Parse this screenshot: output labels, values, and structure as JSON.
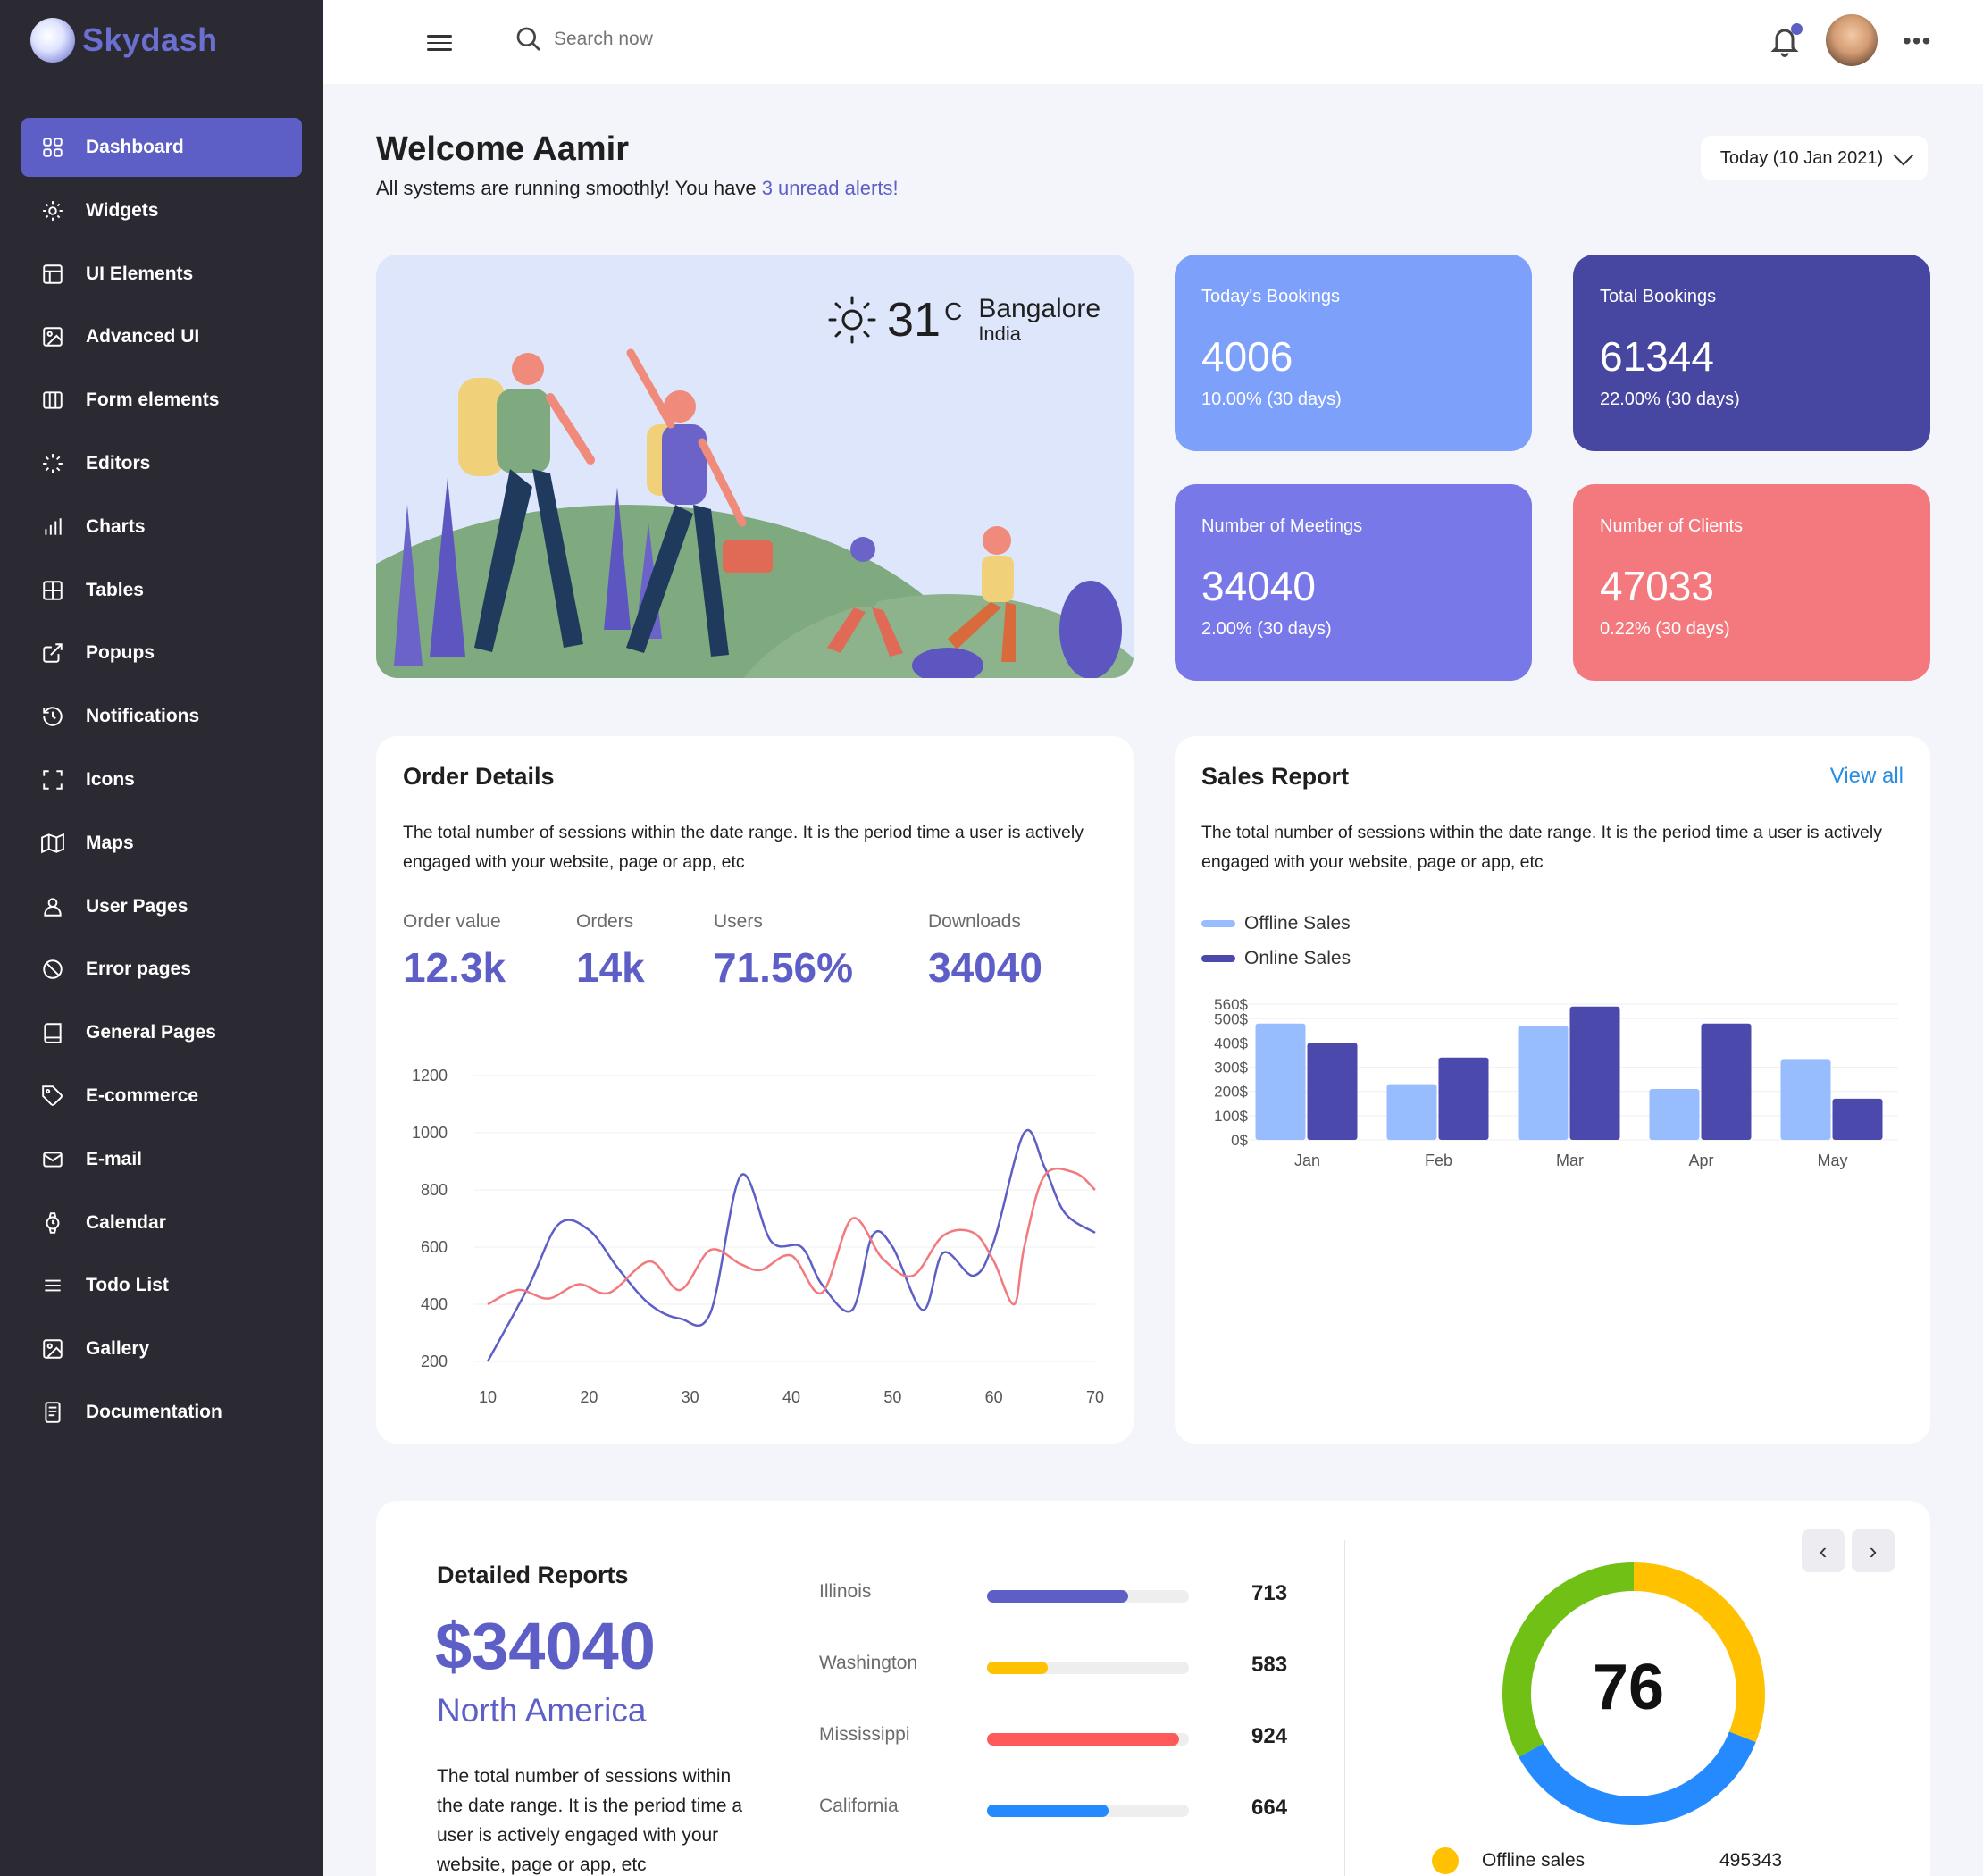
{
  "app": {
    "name": "Skydash"
  },
  "sidebar": {
    "items": [
      {
        "label": "Dashboard",
        "icon": "grid-icon",
        "active": true
      },
      {
        "label": "Widgets",
        "icon": "gear-icon"
      },
      {
        "label": "UI Elements",
        "icon": "layout-icon"
      },
      {
        "label": "Advanced UI",
        "icon": "image-icon"
      },
      {
        "label": "Form elements",
        "icon": "columns-icon"
      },
      {
        "label": "Editors",
        "icon": "loader-icon"
      },
      {
        "label": "Charts",
        "icon": "bar-chart-icon"
      },
      {
        "label": "Tables",
        "icon": "table-icon"
      },
      {
        "label": "Popups",
        "icon": "external-link-icon"
      },
      {
        "label": "Notifications",
        "icon": "history-icon"
      },
      {
        "label": "Icons",
        "icon": "crosshair-icon"
      },
      {
        "label": "Maps",
        "icon": "map-icon"
      },
      {
        "label": "User Pages",
        "icon": "user-icon"
      },
      {
        "label": "Error pages",
        "icon": "block-icon"
      },
      {
        "label": "General Pages",
        "icon": "book-icon"
      },
      {
        "label": "E-commerce",
        "icon": "tag-icon"
      },
      {
        "label": "E-mail",
        "icon": "mail-icon"
      },
      {
        "label": "Calendar",
        "icon": "watch-icon"
      },
      {
        "label": "Todo List",
        "icon": "list-icon"
      },
      {
        "label": "Gallery",
        "icon": "image-icon"
      },
      {
        "label": "Documentation",
        "icon": "document-icon"
      }
    ]
  },
  "topbar": {
    "search_placeholder": "Search now"
  },
  "welcome": {
    "title": "Welcome Aamir",
    "subtitle_prefix": "All systems are running smoothly! You have ",
    "alerts_link": "3 unread alerts!",
    "date_button": "Today (10 Jan 2021)"
  },
  "weather": {
    "temp": "31",
    "unit": "C",
    "city": "Bangalore",
    "country": "India"
  },
  "stats": [
    {
      "label": "Today's Bookings",
      "value": "4006",
      "change": "10.00% (30 days)",
      "color": "#7da0fa"
    },
    {
      "label": "Total Bookings",
      "value": "61344",
      "change": "22.00% (30 days)",
      "color": "#4747a1"
    },
    {
      "label": "Number of Meetings",
      "value": "34040",
      "change": "2.00% (30 days)",
      "color": "#7978e9"
    },
    {
      "label": "Number of Clients",
      "value": "47033",
      "change": "0.22% (30 days)",
      "color": "#f3797e"
    }
  ],
  "order_details": {
    "title": "Order Details",
    "description": "The total number of sessions within the date range. It is the period time a user is actively engaged with your website, page or app, etc",
    "metrics": [
      {
        "label": "Order value",
        "value": "12.3k"
      },
      {
        "label": "Orders",
        "value": "14k"
      },
      {
        "label": "Users",
        "value": "71.56%"
      },
      {
        "label": "Downloads",
        "value": "34040"
      }
    ]
  },
  "sales_report": {
    "title": "Sales Report",
    "view_all": "View all",
    "description": "The total number of sessions within the date range. It is the period time a user is actively engaged with your website, page or app, etc"
  },
  "detailed_reports": {
    "title": "Detailed Reports",
    "amount": "$34040",
    "region": "North America",
    "description": "The total number of sessions within the date range. It is the period time a user is actively engaged with your website, page or app, etc",
    "states": [
      {
        "name": "Illinois",
        "value": "713",
        "fill": 0.7,
        "color": "#5d5fc7"
      },
      {
        "name": "Washington",
        "value": "583",
        "fill": 0.3,
        "color": "#ffc100"
      },
      {
        "name": "Mississippi",
        "value": "924",
        "fill": 0.95,
        "color": "#fe5a5a"
      },
      {
        "name": "California",
        "value": "664",
        "fill": 0.6,
        "color": "#248afd"
      }
    ],
    "gauge_value": "76",
    "pie_legend": [
      {
        "label": "Offline sales",
        "value": "495343",
        "color": "#ffc100"
      }
    ],
    "prev_arrow": "‹",
    "next_arrow": "›"
  },
  "chart_data": [
    {
      "type": "line",
      "x": [
        10,
        20,
        30,
        40,
        50,
        60,
        70
      ],
      "xlim": [
        10,
        70
      ],
      "ylim": [
        200,
        1200
      ],
      "yticks": [
        200,
        400,
        600,
        800,
        1000,
        1200
      ],
      "xticks": [
        10,
        20,
        30,
        40,
        50,
        60,
        70
      ],
      "series": [
        {
          "color": "#5d5fc7",
          "points": [
            [
              10,
              200
            ],
            [
              14,
              460
            ],
            [
              17,
              680
            ],
            [
              20,
              660
            ],
            [
              23,
              520
            ],
            [
              26,
              400
            ],
            [
              29,
              350
            ],
            [
              32,
              370
            ],
            [
              35,
              850
            ],
            [
              38,
              620
            ],
            [
              41,
              600
            ],
            [
              43,
              470
            ],
            [
              46,
              380
            ],
            [
              48,
              640
            ],
            [
              50,
              600
            ],
            [
              53,
              380
            ],
            [
              55,
              580
            ],
            [
              58,
              500
            ],
            [
              60,
              620
            ],
            [
              63,
              1000
            ],
            [
              65,
              880
            ],
            [
              67,
              720
            ],
            [
              70,
              650
            ]
          ]
        },
        {
          "color": "#f3797e",
          "points": [
            [
              10,
              400
            ],
            [
              13,
              450
            ],
            [
              16,
              420
            ],
            [
              19,
              470
            ],
            [
              22,
              440
            ],
            [
              26,
              550
            ],
            [
              29,
              450
            ],
            [
              32,
              590
            ],
            [
              35,
              540
            ],
            [
              37,
              520
            ],
            [
              40,
              570
            ],
            [
              43,
              440
            ],
            [
              46,
              700
            ],
            [
              49,
              560
            ],
            [
              52,
              500
            ],
            [
              55,
              640
            ],
            [
              58,
              650
            ],
            [
              60,
              550
            ],
            [
              62,
              400
            ],
            [
              63,
              600
            ],
            [
              65,
              850
            ],
            [
              68,
              860
            ],
            [
              70,
              800
            ]
          ]
        }
      ]
    },
    {
      "type": "bar",
      "categories": [
        "Jan",
        "Feb",
        "Mar",
        "Apr",
        "May"
      ],
      "series": [
        {
          "name": "Offline Sales",
          "color": "#98bdff",
          "values": [
            480,
            230,
            470,
            210,
            330
          ]
        },
        {
          "name": "Online Sales",
          "color": "#4b49ac",
          "values": [
            400,
            340,
            550,
            480,
            170
          ]
        }
      ],
      "ylim": [
        0,
        560
      ],
      "yticks": [
        "0$",
        "100$",
        "200$",
        "300$",
        "400$",
        "500$",
        "560$"
      ]
    },
    {
      "type": "pie",
      "slices": [
        {
          "color": "#ffc100",
          "value": 0.31
        },
        {
          "color": "#248afd",
          "value": 0.36
        },
        {
          "color": "#71c016",
          "value": 0.33
        }
      ]
    }
  ]
}
